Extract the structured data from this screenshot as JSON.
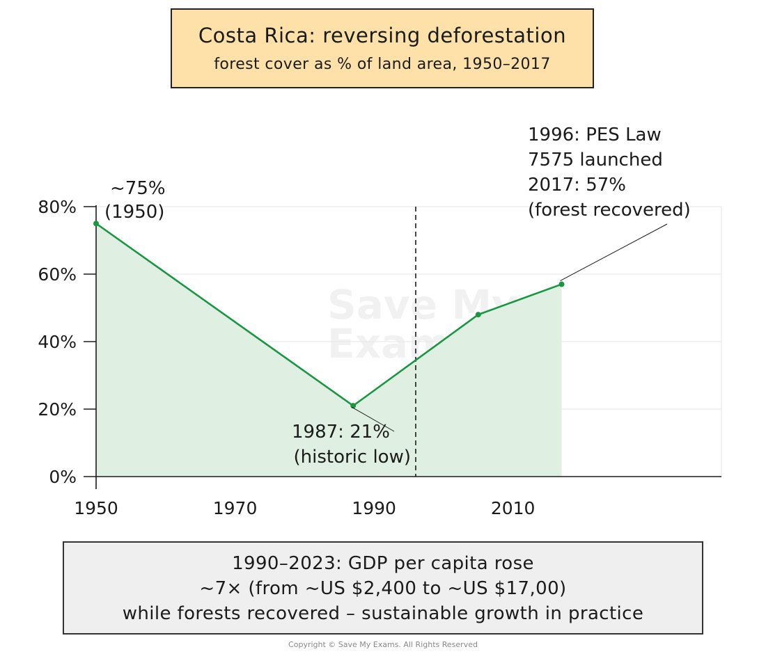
{
  "title": "Costa Rica: reversing deforestation",
  "subtitle": "forest cover as % of land area, 1950–2017",
  "chart_data": {
    "type": "area",
    "title": "Costa Rica: reversing deforestation",
    "subtitle": "forest cover as % of land area, 1950–2017",
    "xlabel": "",
    "ylabel": "",
    "xlim": [
      1950,
      2040
    ],
    "ylim": [
      0,
      80
    ],
    "x_ticks": [
      1950,
      1970,
      1990,
      2010
    ],
    "y_ticks": [
      0,
      20,
      40,
      60,
      80
    ],
    "x_tick_labels": [
      "1950",
      "1970",
      "1990",
      "2010"
    ],
    "y_tick_labels": [
      "0%",
      "20%",
      "40%",
      "60%",
      "80%"
    ],
    "grid": true,
    "series": [
      {
        "points": [
          {
            "x": 1950,
            "y": 75
          },
          {
            "x": 1987,
            "y": 21
          },
          {
            "x": 2005,
            "y": 48
          },
          {
            "x": 2017,
            "y": 57
          }
        ]
      }
    ],
    "reference_line": {
      "x": 1996
    },
    "annotations": {
      "start": [
        "~75%",
        "(1950)"
      ],
      "low": [
        "1987: 21%",
        "(historic low)"
      ],
      "policy": [
        "1996: PES Law",
        "7575 launched",
        "2017: 57%",
        "(forest recovered)"
      ]
    },
    "colors": {
      "line": "#1a9641",
      "fill": "#dff0e3",
      "grid": "#e6e6e6"
    }
  },
  "bottom_note": {
    "lines": [
      "1990–2023: GDP per capita rose",
      "~7× (from ~US $2,400 to ~US $17,00)",
      "while forests recovered – sustainable growth in practice"
    ]
  },
  "watermark": [
    "Save My",
    "Exams"
  ],
  "copyright": "Copyright © Save My Exams. All Rights Reserved"
}
